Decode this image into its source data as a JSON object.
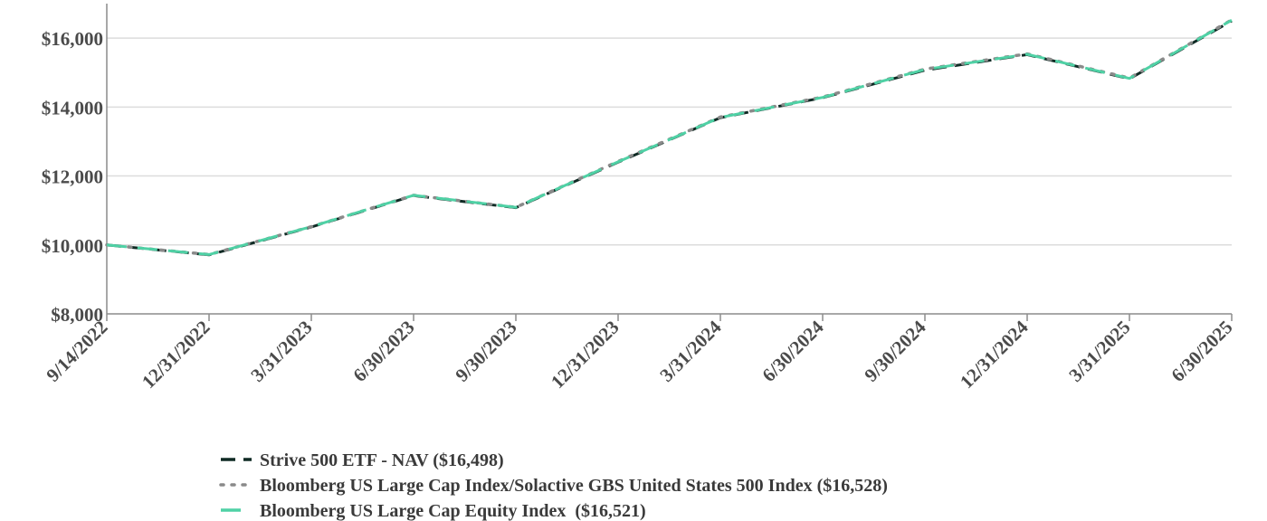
{
  "chart_data": {
    "type": "line",
    "x": [
      "9/14/2022",
      "12/31/2022",
      "3/31/2023",
      "6/30/2023",
      "9/30/2023",
      "12/31/2023",
      "3/31/2024",
      "6/30/2024",
      "9/30/2024",
      "12/31/2024",
      "3/31/2025",
      "6/30/2025"
    ],
    "ylim": [
      8000,
      17000
    ],
    "yticks": [
      8000,
      10000,
      12000,
      14000,
      16000
    ],
    "ytick_labels": [
      "$8,000",
      "$10,000",
      "$12,000",
      "$14,000",
      "$16,000"
    ],
    "grid": true,
    "legend_position": "bottom",
    "series": [
      {
        "name": "Strive 500 ETF - NAV ($16,498)",
        "color": "#0f2a24",
        "dash": "dash",
        "values": [
          10000,
          9710,
          10520,
          11430,
          11080,
          12400,
          13690,
          14270,
          15070,
          15520,
          14820,
          16498
        ]
      },
      {
        "name": "Bloomberg US Large Cap Index/Solactive GBS United States 500 Index ($16,528)",
        "color": "#8a8a8a",
        "dash": "dot",
        "values": [
          10000,
          9720,
          10530,
          11440,
          11090,
          12420,
          13710,
          14290,
          15100,
          15540,
          14840,
          16528
        ]
      },
      {
        "name": "Bloomberg US Large Cap Equity Index  ($16,521)",
        "color": "#4fd1a5",
        "dash": "longdash",
        "values": [
          10000,
          9720,
          10530,
          11440,
          11090,
          12410,
          13700,
          14280,
          15090,
          15530,
          14830,
          16521
        ]
      }
    ]
  }
}
